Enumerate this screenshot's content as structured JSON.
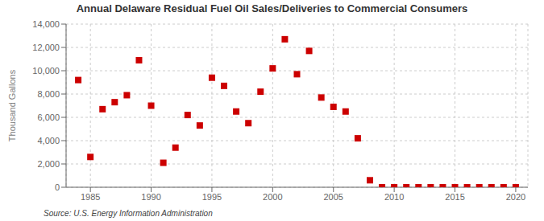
{
  "chart_data": {
    "type": "scatter",
    "title": "Annual Delaware Residual Fuel Oil Sales/Deliveries to Commercial Consumers",
    "ylabel": "Thousand Gallons",
    "annotation": "Source: U.S. Energy Information Administration",
    "color": "#cc0000",
    "marker": "square",
    "x": [
      1984,
      1985,
      1986,
      1987,
      1988,
      1989,
      1990,
      1991,
      1992,
      1993,
      1994,
      1995,
      1996,
      1997,
      1998,
      1999,
      2000,
      2001,
      2002,
      2003,
      2004,
      2005,
      2006,
      2007,
      2008,
      2009,
      2010,
      2011,
      2012,
      2013,
      2014,
      2015,
      2016,
      2017,
      2018,
      2019,
      2020
    ],
    "values": [
      9200,
      2600,
      6700,
      7300,
      7900,
      10900,
      7000,
      2100,
      3400,
      6200,
      5300,
      9400,
      8700,
      6500,
      5500,
      8200,
      10200,
      12700,
      9700,
      11700,
      7700,
      6900,
      6500,
      4200,
      600,
      0,
      0,
      0,
      0,
      0,
      0,
      0,
      0,
      0,
      0,
      0,
      0
    ],
    "xlim": [
      1983,
      2021
    ],
    "ylim": [
      0,
      14000
    ],
    "xticks": [
      1985,
      1990,
      1995,
      2000,
      2005,
      2010,
      2015,
      2020
    ],
    "yticks": [
      0,
      {
        "value": 2000,
        "label": "2,000"
      },
      {
        "value": 4000,
        "label": "4,000"
      },
      {
        "value": 6000,
        "label": "6,000"
      },
      {
        "value": 8000,
        "label": "8,000"
      },
      {
        "value": 10000,
        "label": "10,000"
      },
      {
        "value": 12000,
        "label": "12,000"
      },
      {
        "value": 14000,
        "label": "14,000"
      }
    ],
    "grid": true
  }
}
